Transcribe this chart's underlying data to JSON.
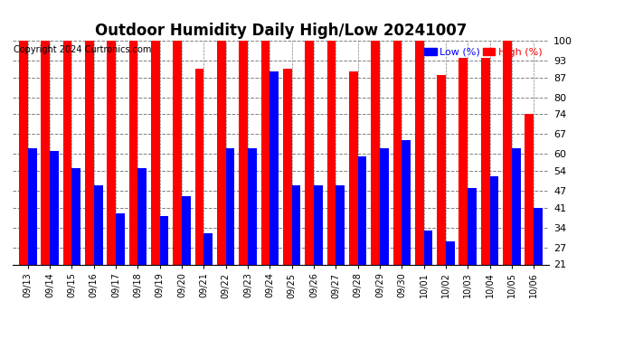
{
  "title": "Outdoor Humidity Daily High/Low 20241007",
  "copyright": "Copyright 2024 Curtronics.com",
  "legend_low_label": "Low (%)",
  "legend_high_label": "High (%)",
  "low_color": "blue",
  "high_color": "red",
  "background_color": "#ffffff",
  "ylim": [
    21,
    100
  ],
  "yticks": [
    21,
    27,
    34,
    41,
    47,
    54,
    60,
    67,
    74,
    80,
    87,
    93,
    100
  ],
  "categories": [
    "09/13",
    "09/14",
    "09/15",
    "09/16",
    "09/17",
    "09/18",
    "09/19",
    "09/20",
    "09/21",
    "09/22",
    "09/23",
    "09/24",
    "09/25",
    "09/26",
    "09/27",
    "09/28",
    "09/29",
    "09/30",
    "10/01",
    "10/02",
    "10/03",
    "10/04",
    "10/05",
    "10/06"
  ],
  "high_values": [
    100,
    100,
    100,
    100,
    100,
    100,
    100,
    100,
    90,
    100,
    100,
    100,
    90,
    100,
    100,
    89,
    100,
    100,
    100,
    88,
    94,
    94,
    100,
    74
  ],
  "low_values": [
    62,
    61,
    55,
    49,
    39,
    55,
    38,
    45,
    32,
    62,
    62,
    89,
    49,
    49,
    49,
    59,
    62,
    65,
    33,
    29,
    48,
    52,
    62,
    41
  ]
}
